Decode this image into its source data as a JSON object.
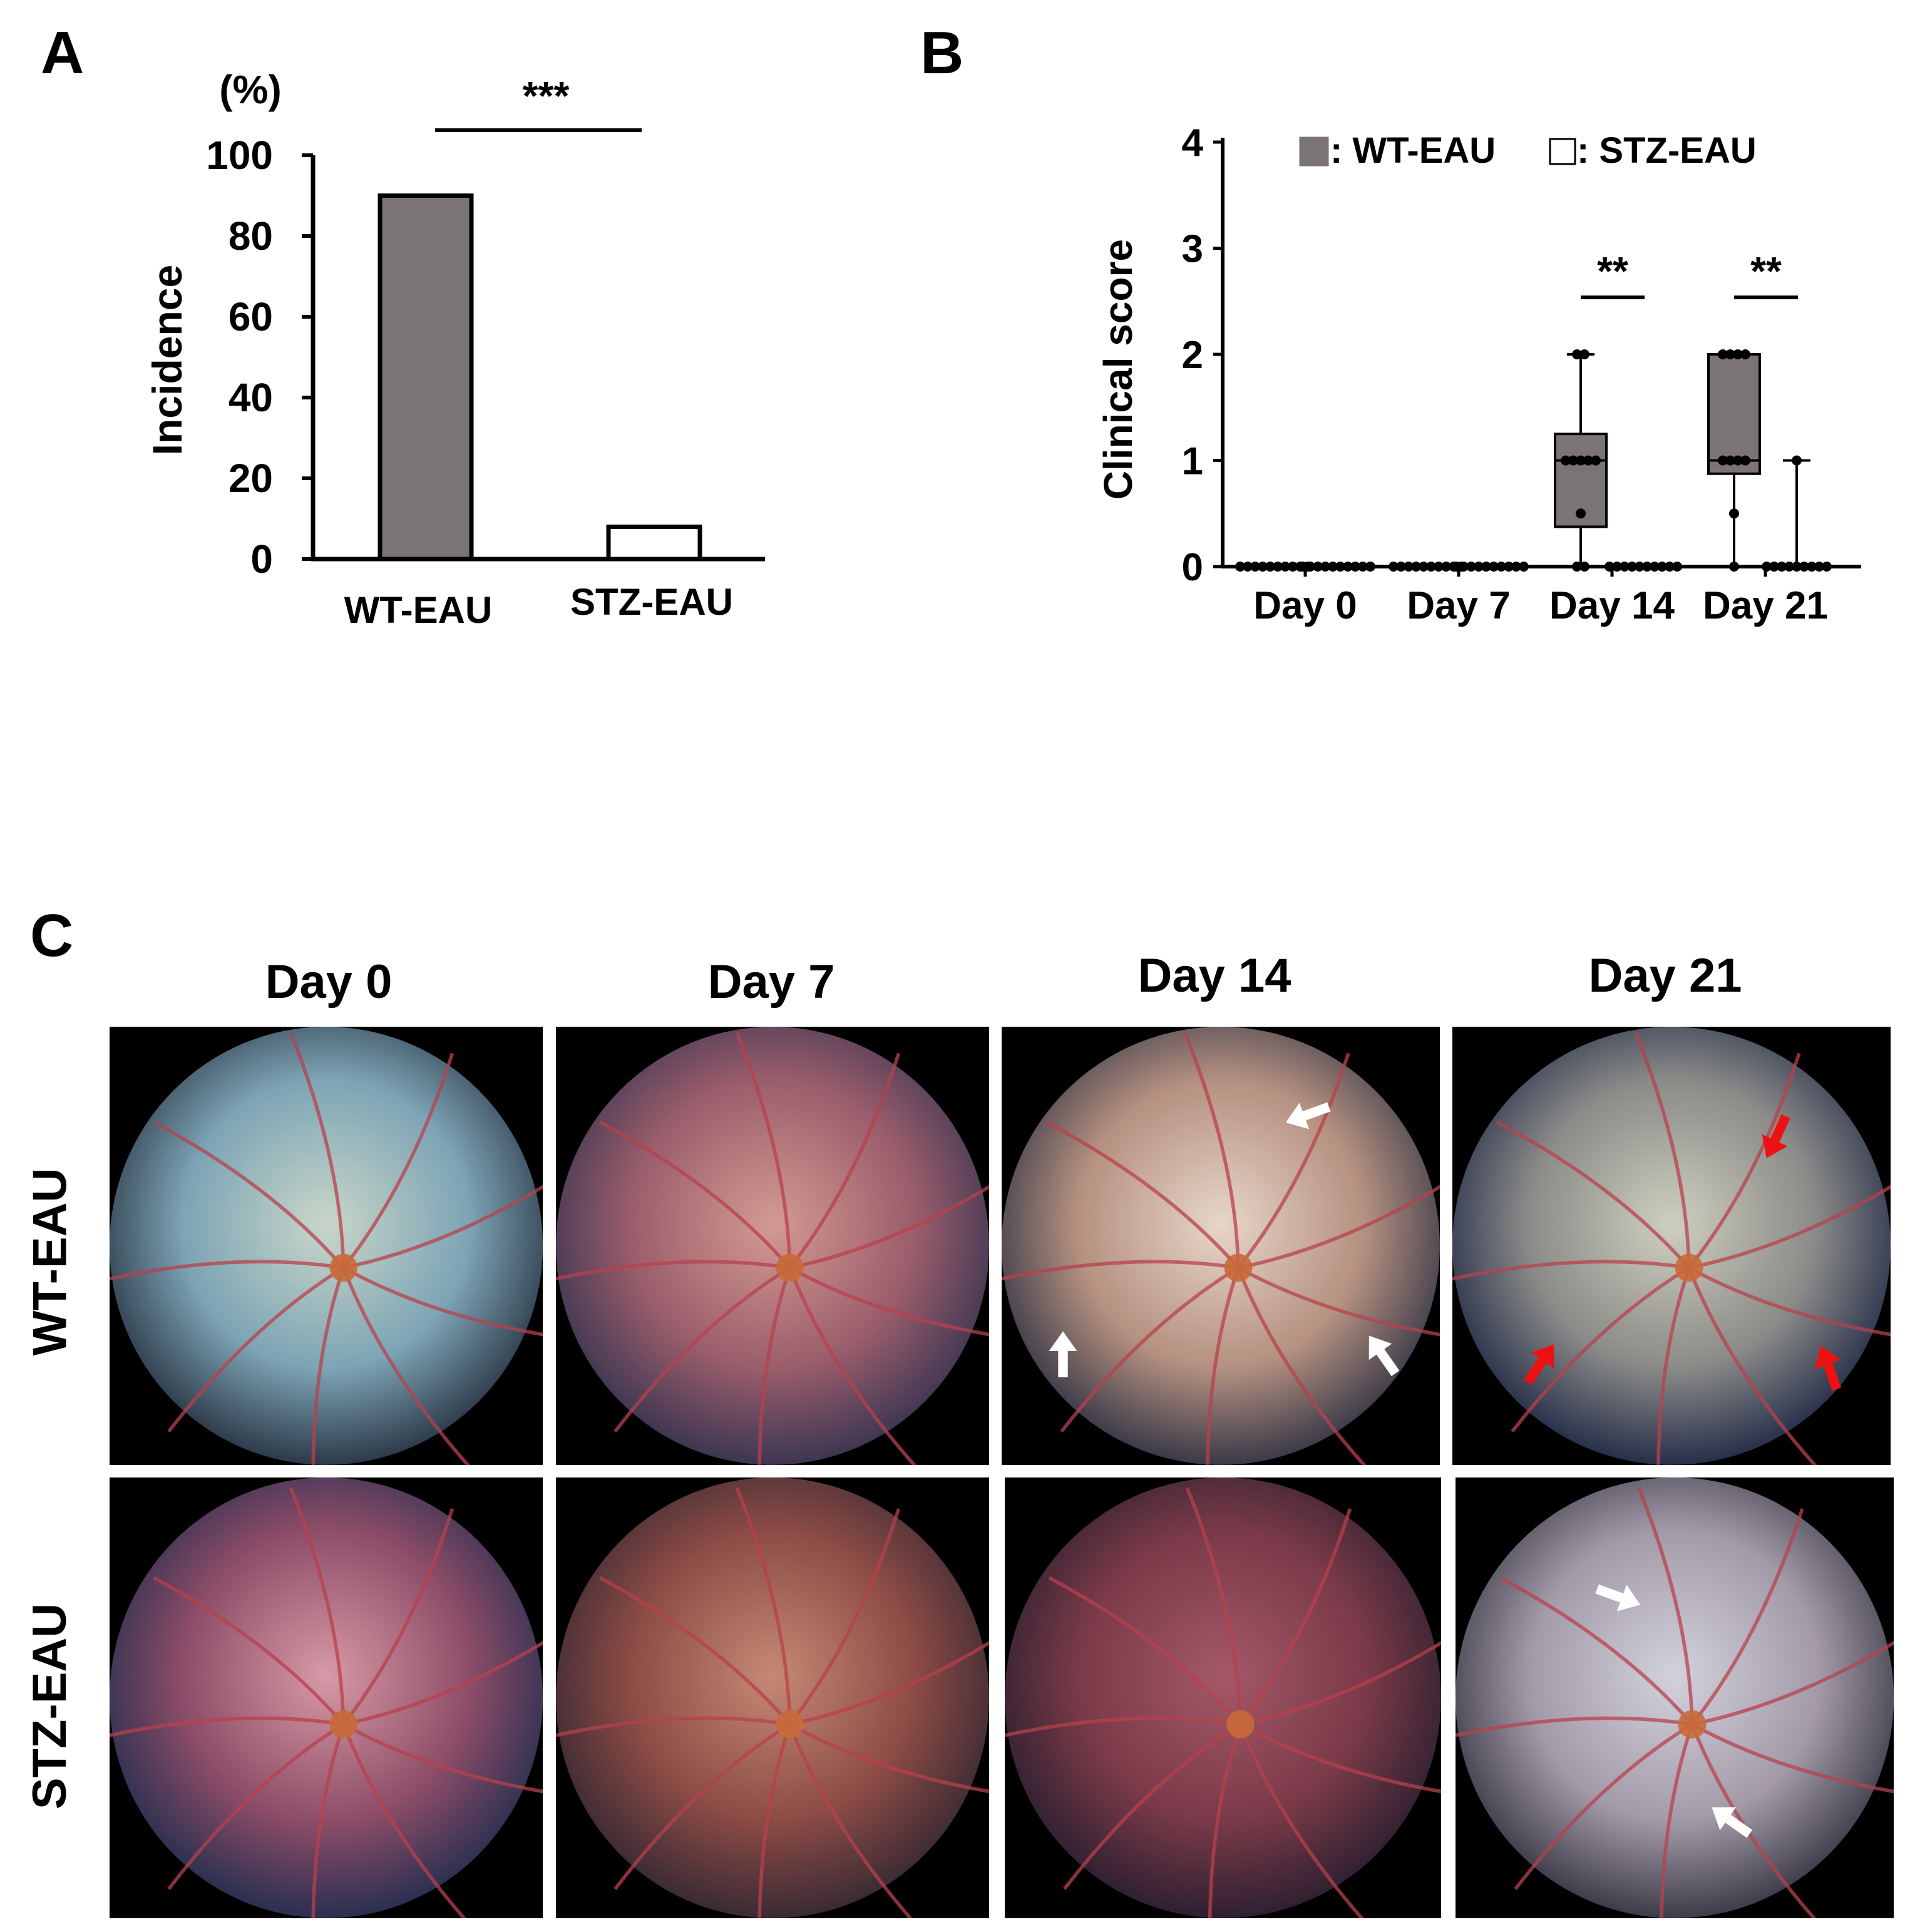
{
  "panel_labels": {
    "a": "A",
    "b": "B",
    "c": "C"
  },
  "chart_data": [
    {
      "type": "bar",
      "panel": "A",
      "unit_label": "(%)",
      "ylabel": "Incidence",
      "xlabel": "",
      "categories": [
        "WT-EAU",
        "STZ-EAU"
      ],
      "values": [
        90,
        8
      ],
      "bar_colors": [
        "#7a7574",
        "#ffffff"
      ],
      "ylim": [
        0,
        100
      ],
      "yticks": [
        0,
        20,
        40,
        60,
        80,
        100
      ],
      "significance": "***"
    },
    {
      "type": "box",
      "panel": "B",
      "ylabel": "Clinical score",
      "categories": [
        "Day 0",
        "Day 7",
        "Day 14",
        "Day 21"
      ],
      "ylim": [
        0,
        4
      ],
      "yticks": [
        0,
        1,
        2,
        3,
        4
      ],
      "legend": [
        {
          "name": "WT-EAU",
          "color": "#7a7574",
          "label": ": WT-EAU"
        },
        {
          "name": "STZ-EAU",
          "color": "#ffffff",
          "label": ": STZ-EAU"
        }
      ],
      "series": [
        {
          "name": "WT-EAU",
          "boxes": [
            {
              "min": 0,
              "q1": 0,
              "median": 0,
              "q3": 0,
              "max": 0,
              "points": [
                0,
                0,
                0,
                0,
                0,
                0,
                0,
                0,
                0,
                0
              ]
            },
            {
              "min": 0,
              "q1": 0,
              "median": 0,
              "q3": 0,
              "max": 0,
              "points": [
                0,
                0,
                0,
                0,
                0,
                0,
                0,
                0,
                0,
                0
              ]
            },
            {
              "min": 0,
              "q1": 0.375,
              "median": 1,
              "q3": 1.25,
              "max": 2,
              "points": [
                0,
                0,
                0.5,
                1,
                1,
                1,
                1,
                1,
                2,
                2
              ]
            },
            {
              "min": 0,
              "q1": 0.875,
              "median": 1,
              "q3": 2,
              "max": 2,
              "points": [
                0,
                0.5,
                1,
                1,
                1,
                1,
                2,
                2,
                2,
                2
              ]
            }
          ]
        },
        {
          "name": "STZ-EAU",
          "boxes": [
            {
              "min": 0,
              "q1": 0,
              "median": 0,
              "q3": 0,
              "max": 0,
              "points": [
                0,
                0,
                0,
                0,
                0,
                0,
                0,
                0,
                0,
                0
              ]
            },
            {
              "min": 0,
              "q1": 0,
              "median": 0,
              "q3": 0,
              "max": 0,
              "points": [
                0,
                0,
                0,
                0,
                0,
                0,
                0,
                0,
                0,
                0
              ]
            },
            {
              "min": 0,
              "q1": 0,
              "median": 0,
              "q3": 0,
              "max": 0,
              "points": [
                0,
                0,
                0,
                0,
                0,
                0,
                0,
                0,
                0,
                0
              ]
            },
            {
              "min": 0,
              "q1": 0,
              "median": 0,
              "q3": 0,
              "max": 1,
              "points": [
                0,
                0,
                0,
                0,
                0,
                0,
                0,
                0,
                0,
                1
              ]
            }
          ]
        }
      ],
      "significance": [
        {
          "category": "Day 14",
          "label": "**"
        },
        {
          "category": "Day 21",
          "label": "**"
        }
      ]
    }
  ],
  "figure_c": {
    "columns": [
      "Day 0",
      "Day 7",
      "Day 14",
      "Day 21"
    ],
    "rows": [
      "WT-EAU",
      "STZ-EAU"
    ],
    "arrow_colors": {
      "white": "#ffffff",
      "red": "#ee1111"
    }
  }
}
